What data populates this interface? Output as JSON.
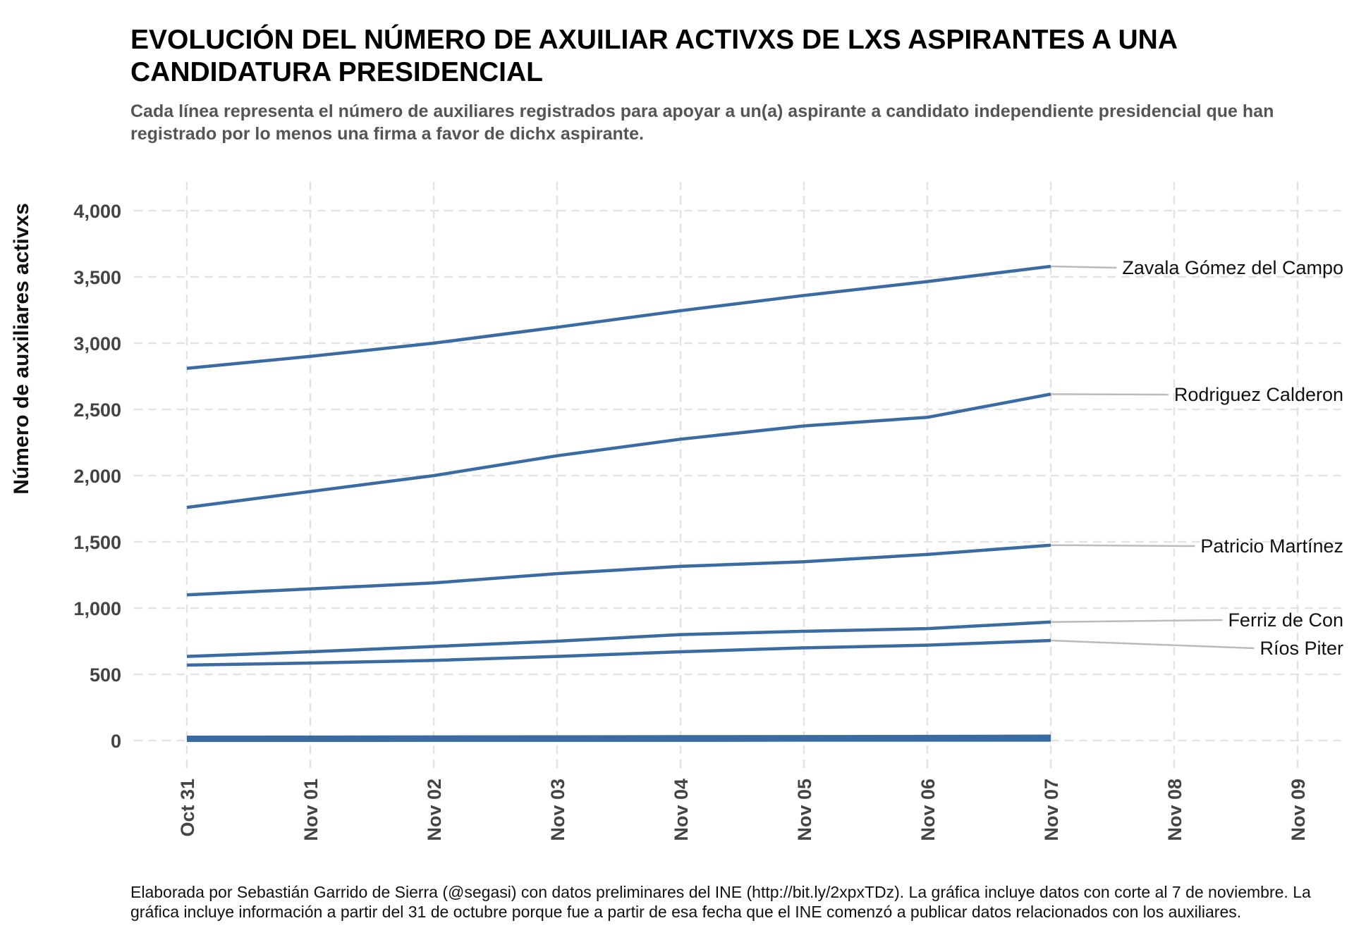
{
  "title": "EVOLUCIÓN DEL NÚMERO DE AXUILIAR ACTIVXS DE LXS ASPIRANTES A UNA CANDIDATURA PRESIDENCIAL",
  "subtitle": "Cada línea representa el número de auxiliares registrados para apoyar a un(a) aspirante a candidato independiente presidencial que han registrado por lo menos una firma a favor de dichx aspirante.",
  "caption": "Elaborada por Sebastián Garrido de Sierra (@segasi) con datos preliminares del INE (http://bit.ly/2xpxTDz). La gráfica incluye datos con corte al 7 de noviembre. La gráfica incluye información a partir del 31 de octubre porque fue a partir de esa fecha que el INE comenzó a publicar datos relacionados con los auxiliares.",
  "chart_data": {
    "type": "line",
    "ylabel": "Número de auxiliares activxs",
    "xlabel": "",
    "x": [
      "Oct 31",
      "Nov 01",
      "Nov 02",
      "Nov 03",
      "Nov 04",
      "Nov 05",
      "Nov 06",
      "Nov 07"
    ],
    "x_ticks": [
      "Oct 31",
      "Nov 01",
      "Nov 02",
      "Nov 03",
      "Nov 04",
      "Nov 05",
      "Nov 06",
      "Nov 07",
      "Nov 08",
      "Nov 09"
    ],
    "y_ticks": [
      0,
      500,
      1000,
      1500,
      2000,
      2500,
      3000,
      3500,
      4000
    ],
    "y_tick_labels": [
      "0",
      "500",
      "1,000",
      "1,500",
      "2,000",
      "2,500",
      "3,000",
      "3,500",
      "4,000"
    ],
    "ylim": [
      -200,
      4200
    ],
    "grid": true,
    "line_color": "#3A6BA3",
    "label_line_color": "#BBBBBB",
    "series": [
      {
        "name": "Zavala Gómez del Campo",
        "values": [
          2810,
          2900,
          3000,
          3120,
          3245,
          3360,
          3465,
          3580
        ]
      },
      {
        "name": "Rodriguez Calderon",
        "values": [
          1760,
          1880,
          2000,
          2150,
          2275,
          2375,
          2440,
          2615
        ]
      },
      {
        "name": "Patricio Martínez",
        "values": [
          1100,
          1145,
          1190,
          1260,
          1315,
          1350,
          1405,
          1475
        ]
      },
      {
        "name": "Ferriz de Con",
        "values": [
          635,
          670,
          710,
          750,
          800,
          825,
          845,
          895
        ]
      },
      {
        "name": "Ríos Piter",
        "values": [
          570,
          585,
          605,
          635,
          670,
          700,
          720,
          755
        ]
      },
      {
        "values": [
          25,
          26,
          27,
          28,
          29,
          30,
          31,
          33
        ]
      },
      {
        "values": [
          20,
          21,
          22,
          23,
          24,
          25,
          26,
          27
        ]
      },
      {
        "values": [
          15,
          16,
          17,
          18,
          19,
          20,
          21,
          22
        ]
      },
      {
        "values": [
          10,
          11,
          12,
          13,
          14,
          15,
          16,
          17
        ]
      },
      {
        "values": [
          6,
          7,
          8,
          8,
          9,
          10,
          11,
          12
        ]
      },
      {
        "values": [
          3,
          4,
          4,
          5,
          5,
          6,
          6,
          7
        ]
      },
      {
        "values": [
          1,
          1,
          2,
          2,
          2,
          3,
          3,
          3
        ]
      }
    ]
  }
}
